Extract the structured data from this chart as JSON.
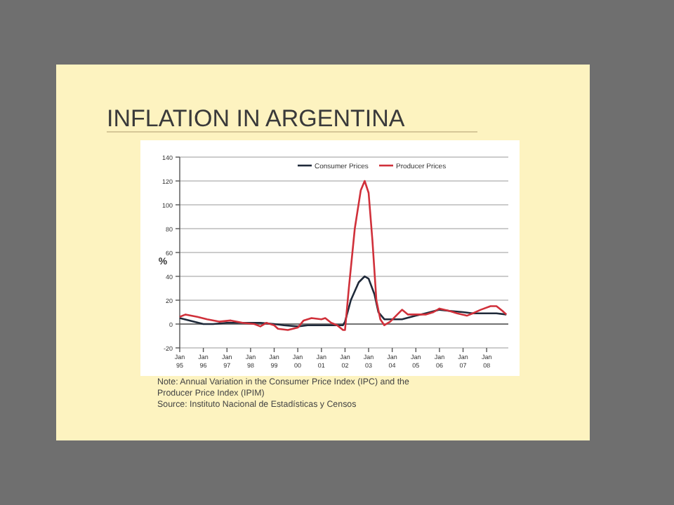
{
  "chart_data": {
    "type": "line",
    "title": "INFLATION IN ARGENTINA",
    "ylabel": "%",
    "xlim": [
      "1995-01",
      "2008-12"
    ],
    "xticks": [
      {
        "value": "1995-01",
        "label": "Jan 95"
      },
      {
        "value": "1996-01",
        "label": "Jan 96"
      },
      {
        "value": "1997-01",
        "label": "Jan 97"
      },
      {
        "value": "1998-01",
        "label": "Jan 98"
      },
      {
        "value": "1999-01",
        "label": "Jan 99"
      },
      {
        "value": "2000-01",
        "label": "Jan 00"
      },
      {
        "value": "2001-01",
        "label": "Jan 01"
      },
      {
        "value": "2002-01",
        "label": "Jan 02"
      },
      {
        "value": "2003-01",
        "label": "Jan 03"
      },
      {
        "value": "2004-01",
        "label": "Jan 04"
      },
      {
        "value": "2005-01",
        "label": "Jan 05"
      },
      {
        "value": "2006-01",
        "label": "Jan 06"
      },
      {
        "value": "2007-01",
        "label": "Jan 07"
      },
      {
        "value": "2008-01",
        "label": "Jan 08"
      }
    ],
    "ylim": [
      -20,
      140
    ],
    "yticks": [
      -20,
      0,
      20,
      40,
      60,
      80,
      100,
      120,
      140
    ],
    "grid": "y",
    "legend": "top right",
    "marker": "none",
    "line_style": "solid",
    "series": [
      {
        "name": "Consumer Prices",
        "color": "#1f2a3a",
        "x": [
          "1995-01",
          "1995-06",
          "1996-01",
          "1996-06",
          "1997-01",
          "1998-01",
          "1998-06",
          "1999-01",
          "1999-06",
          "2000-01",
          "2000-06",
          "2001-01",
          "2001-06",
          "2001-12",
          "2002-01",
          "2002-04",
          "2002-08",
          "2002-11",
          "2003-01",
          "2003-04",
          "2003-06",
          "2003-09",
          "2003-12",
          "2004-06",
          "2005-01",
          "2005-06",
          "2006-01",
          "2006-06",
          "2007-01",
          "2007-06",
          "2008-01",
          "2008-06",
          "2008-11"
        ],
        "values": [
          5,
          3,
          0,
          0,
          1,
          1,
          1,
          0,
          -1,
          -2,
          -1,
          -1,
          -1,
          -1,
          2,
          20,
          35,
          40,
          38,
          25,
          10,
          4,
          4,
          4,
          7,
          9,
          12,
          11,
          10,
          9,
          9,
          9,
          8
        ]
      },
      {
        "name": "Producer Prices",
        "color": "#d0303a",
        "x": [
          "1995-01",
          "1995-04",
          "1995-10",
          "1996-03",
          "1996-09",
          "1997-03",
          "1997-09",
          "1998-03",
          "1998-06",
          "1998-09",
          "1999-01",
          "1999-03",
          "1999-08",
          "2000-01",
          "2000-04",
          "2000-08",
          "2001-01",
          "2001-03",
          "2001-06",
          "2001-09",
          "2001-12",
          "2002-01",
          "2002-03",
          "2002-06",
          "2002-09",
          "2002-11",
          "2003-01",
          "2003-03",
          "2003-05",
          "2003-07",
          "2003-09",
          "2003-12",
          "2004-03",
          "2004-06",
          "2004-09",
          "2005-01",
          "2005-06",
          "2005-10",
          "2006-01",
          "2006-06",
          "2006-10",
          "2007-03",
          "2007-06",
          "2007-10",
          "2008-03",
          "2008-06",
          "2008-09",
          "2008-11"
        ],
        "values": [
          6,
          8,
          6,
          4,
          2,
          3,
          1,
          0,
          -2,
          1,
          -1,
          -4,
          -5,
          -3,
          3,
          5,
          4,
          5,
          1,
          -1,
          -5,
          -5,
          30,
          80,
          112,
          120,
          110,
          70,
          20,
          4,
          -1,
          2,
          7,
          12,
          8,
          8,
          8,
          10,
          13,
          11,
          9,
          7,
          9,
          12,
          15,
          15,
          11,
          8
        ]
      }
    ],
    "annotations": [
      "Note: Annual Variation in the Consumer Price Index (IPC) and the Producer Price Index (IPIM)",
      "Source: Instituto Nacional de Estadísticas y Censos"
    ]
  }
}
